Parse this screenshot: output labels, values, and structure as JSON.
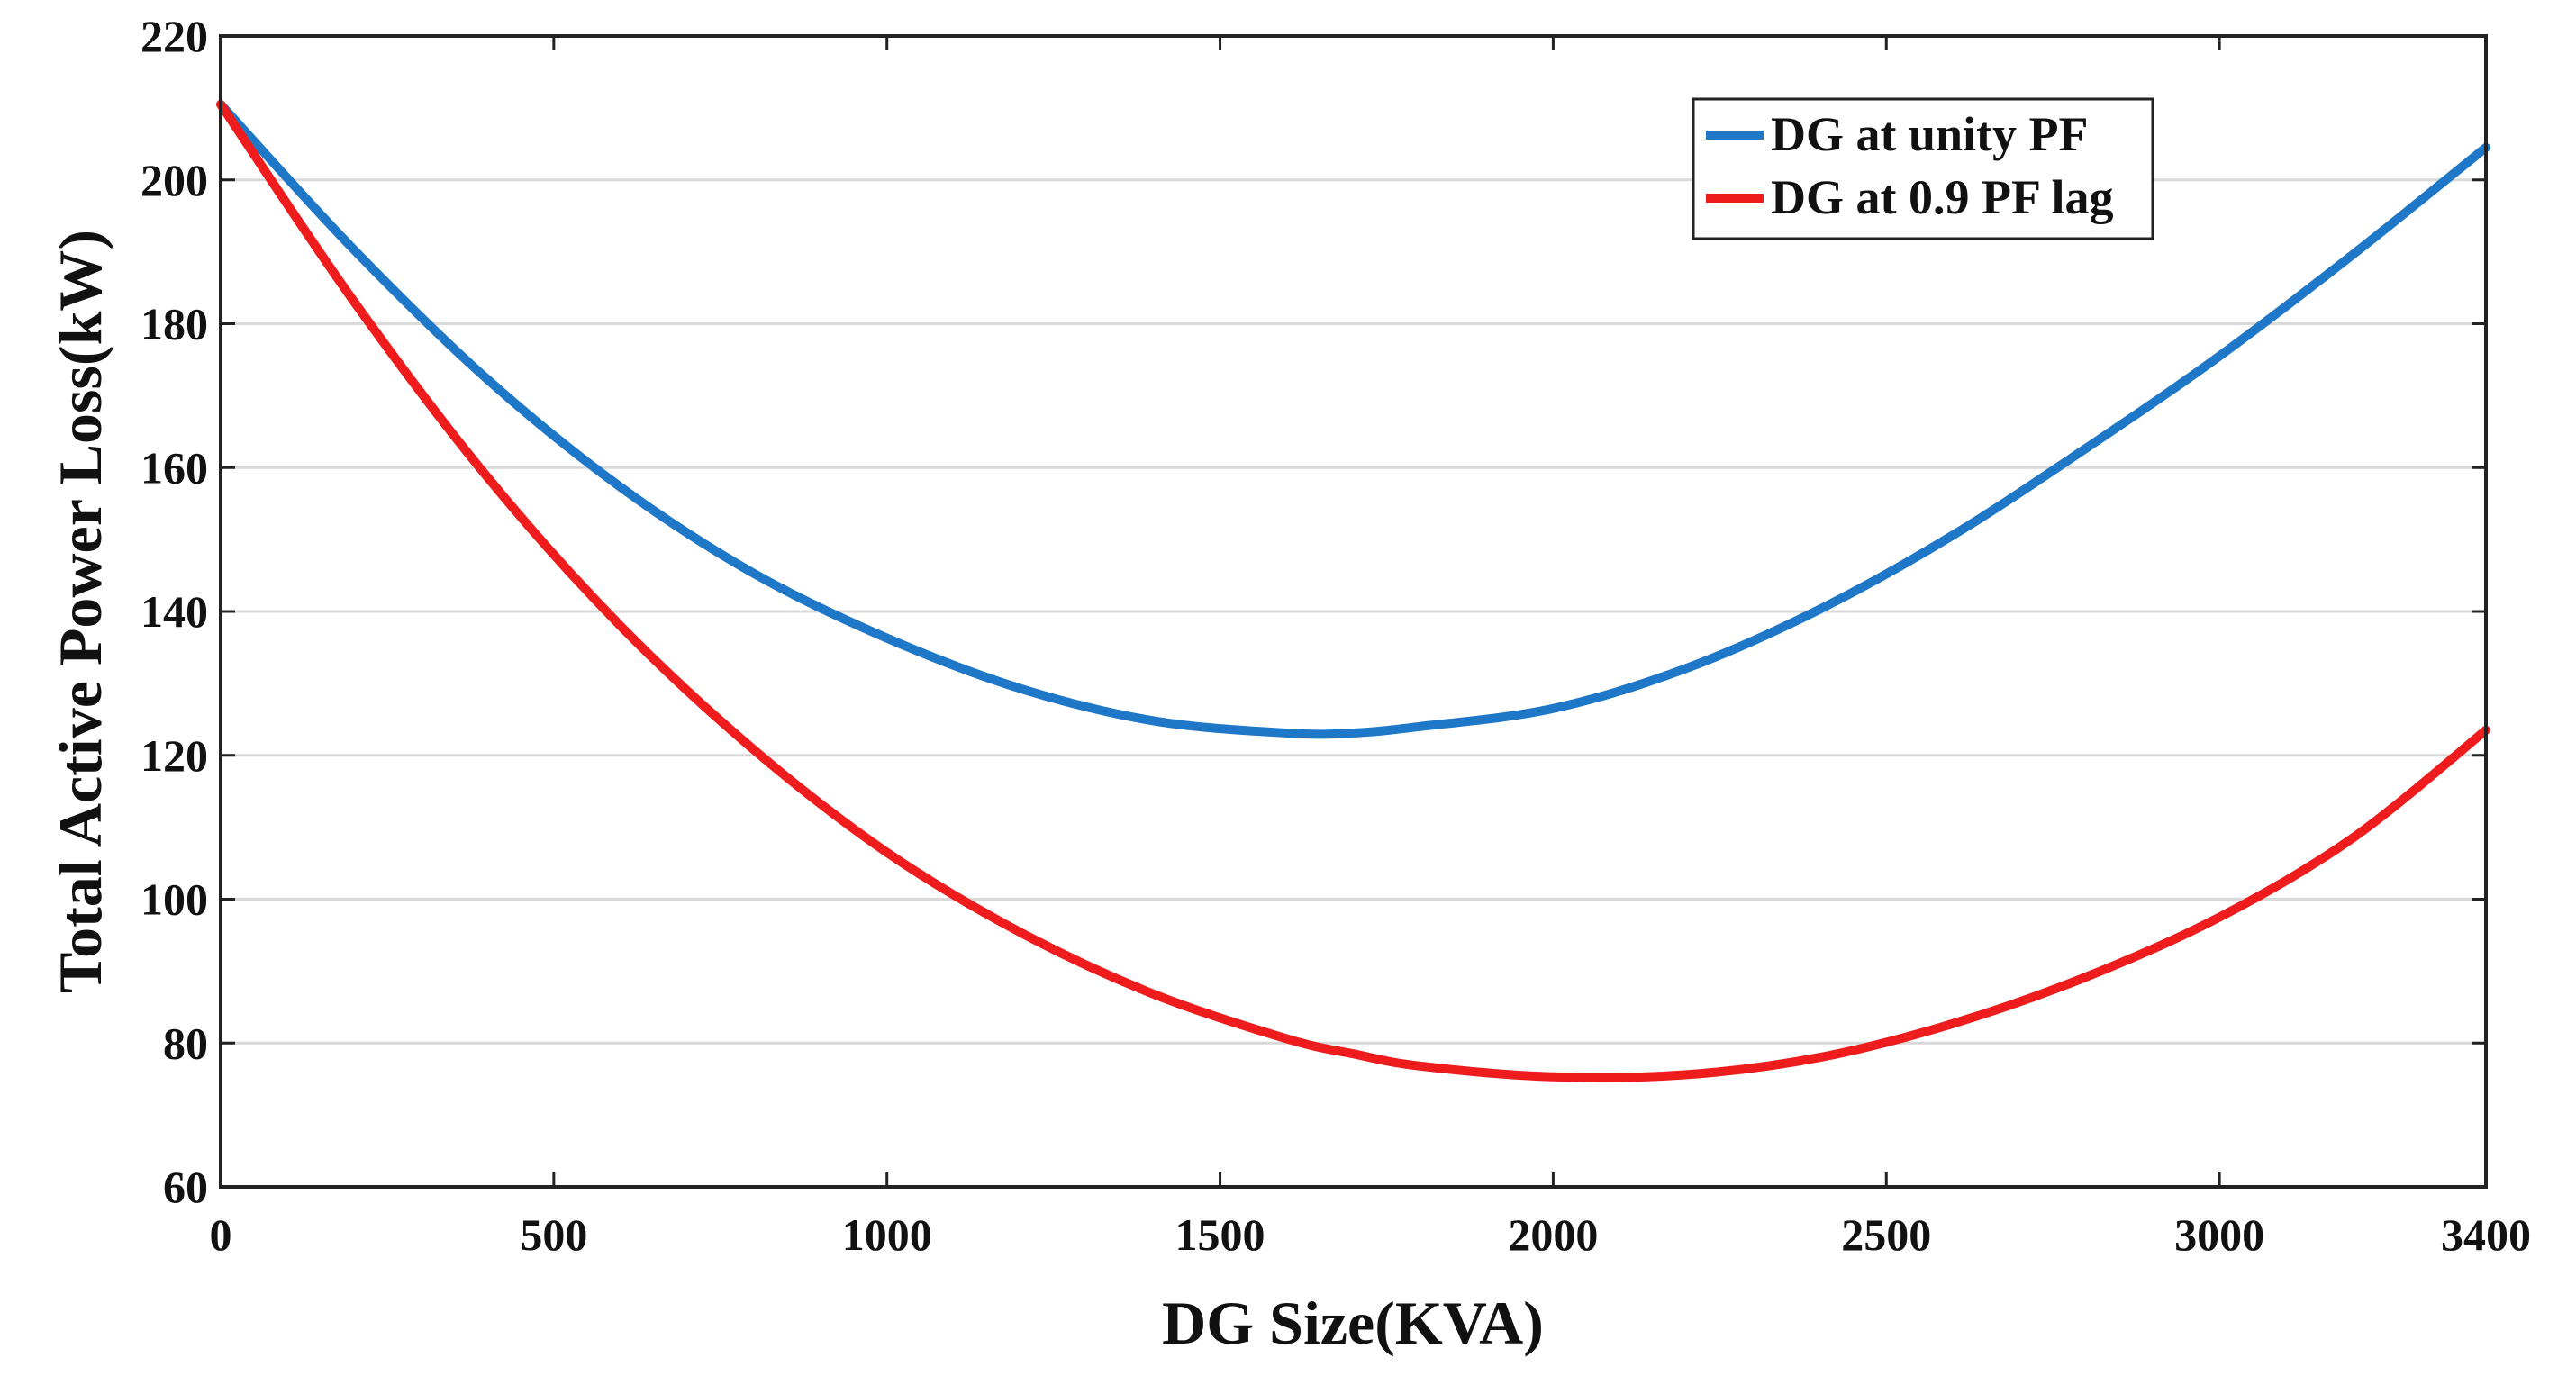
{
  "chart_data": {
    "type": "line",
    "title": "",
    "xlabel": "DG Size(KVA)",
    "ylabel": "Total Active Power Loss(kW)",
    "xlim": [
      0,
      3400
    ],
    "ylim": [
      60,
      220
    ],
    "xticks": [
      0,
      500,
      1000,
      1500,
      2000,
      2500,
      3000,
      3400
    ],
    "xtick_labels": [
      "0",
      "500",
      "1000",
      "1500",
      "2000",
      "2500",
      "3000",
      "3400"
    ],
    "yticks": [
      60,
      80,
      100,
      120,
      140,
      160,
      180,
      200,
      220
    ],
    "ytick_labels": [
      "60",
      "80",
      "100",
      "120",
      "140",
      "160",
      "180",
      "200",
      "220"
    ],
    "grid": "horizontal",
    "legend_position": "top-right",
    "x": [
      0,
      200,
      400,
      600,
      800,
      1000,
      1200,
      1400,
      1600,
      1700,
      1800,
      2000,
      2200,
      2400,
      2600,
      2800,
      3000,
      3200,
      3400
    ],
    "series": [
      {
        "name": "DG at unity PF",
        "color": "#1f77c8",
        "values": [
          210.5,
          190.3,
          172.3,
          157.3,
          145.3,
          136.3,
          129.3,
          124.8,
          123.1,
          123.1,
          124.0,
          126.5,
          132.1,
          140.3,
          150.6,
          162.7,
          175.5,
          189.6,
          204.5
        ]
      },
      {
        "name": "DG at 0.9 PF lag",
        "color": "#ee1c1c",
        "values": [
          210.5,
          183.1,
          158.7,
          138.0,
          120.8,
          106.5,
          95.4,
          86.8,
          80.6,
          78.5,
          76.8,
          75.3,
          75.6,
          78.0,
          82.7,
          89.2,
          97.5,
          108.5,
          123.5
        ]
      }
    ]
  }
}
